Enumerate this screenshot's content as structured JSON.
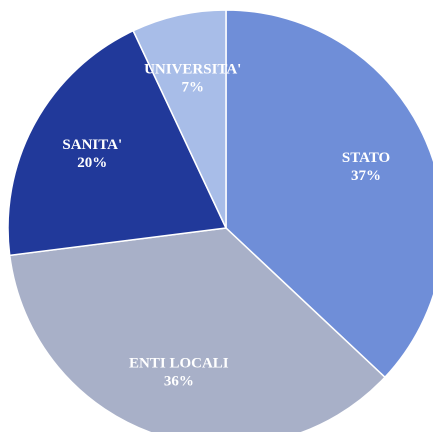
{
  "chart_data": {
    "type": "pie",
    "categories": [
      "STATO",
      "ENTI LOCALI",
      "SANITA'",
      "UNIVERSITA'"
    ],
    "values": [
      37,
      36,
      20,
      7
    ],
    "value_labels": [
      "37%",
      "36%",
      "20%",
      "7%"
    ],
    "colors": [
      "#6f8ed8",
      "#a8b0c8",
      "#21399a",
      "#a8bde8"
    ]
  }
}
